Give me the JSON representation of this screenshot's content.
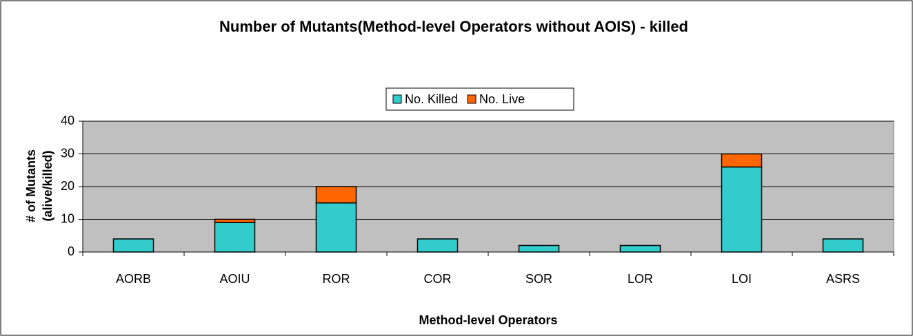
{
  "chart_data": {
    "type": "bar",
    "stacked": true,
    "title": "Number of Mutants(Method-level Operators without AOIS) - killed",
    "x_label": "Method-level Operators",
    "y_label": [
      "# of Mutants",
      "(alive/killed)"
    ],
    "categories": [
      "AORB",
      "AOIU",
      "ROR",
      "COR",
      "SOR",
      "LOR",
      "LOI",
      "ASRS"
    ],
    "series": [
      {
        "name": "No. Killed",
        "color": "#33CCCC",
        "values": [
          4,
          9,
          15,
          4,
          2,
          2,
          26,
          4
        ]
      },
      {
        "name": "No. Live",
        "color": "#FF6600",
        "values": [
          0,
          1,
          5,
          0,
          0,
          0,
          4,
          0
        ]
      }
    ],
    "ylim": [
      0,
      40
    ],
    "yticks": [
      0,
      10,
      20,
      30,
      40
    ],
    "grid": true,
    "legend": "top"
  }
}
